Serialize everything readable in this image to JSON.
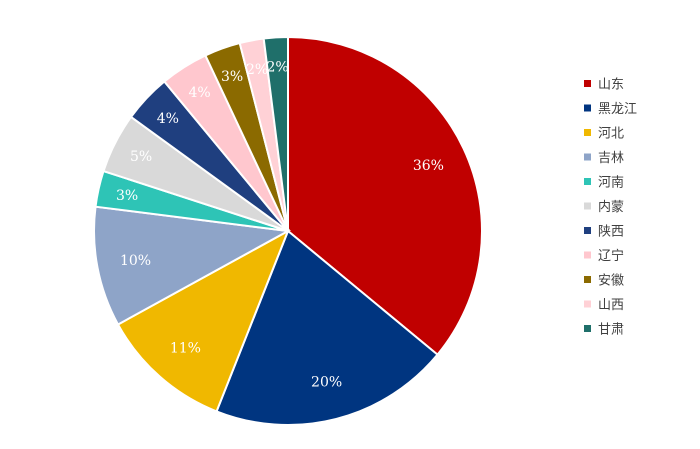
{
  "chart_data": {
    "type": "pie",
    "title": "",
    "legend_position": "right",
    "unit": "%",
    "slices": [
      {
        "name": "山东",
        "value": 36,
        "label": "36%",
        "color": "#C00000"
      },
      {
        "name": "黑龙江",
        "value": 20,
        "label": "20%",
        "color": "#003580"
      },
      {
        "name": "河北",
        "value": 11,
        "label": "11%",
        "color": "#F0B800"
      },
      {
        "name": "吉林",
        "value": 10,
        "label": "10%",
        "color": "#8EA4C8"
      },
      {
        "name": "河南",
        "value": 3,
        "label": "3%",
        "color": "#2EC4B6"
      },
      {
        "name": "内蒙",
        "value": 5,
        "label": "5%",
        "color": "#D9D9D9"
      },
      {
        "name": "陕西",
        "value": 4,
        "label": "4%",
        "color": "#1F3F7F"
      },
      {
        "name": "辽宁",
        "value": 4,
        "label": "4%",
        "color": "#FFC7CE"
      },
      {
        "name": "安徽",
        "value": 3,
        "label": "3%",
        "color": "#8B6A00"
      },
      {
        "name": "山西",
        "value": 2,
        "label": "2%",
        "color": "#FFD1D6"
      },
      {
        "name": "甘肃",
        "value": 2,
        "label": "2%",
        "color": "#1F6F6A"
      }
    ]
  }
}
